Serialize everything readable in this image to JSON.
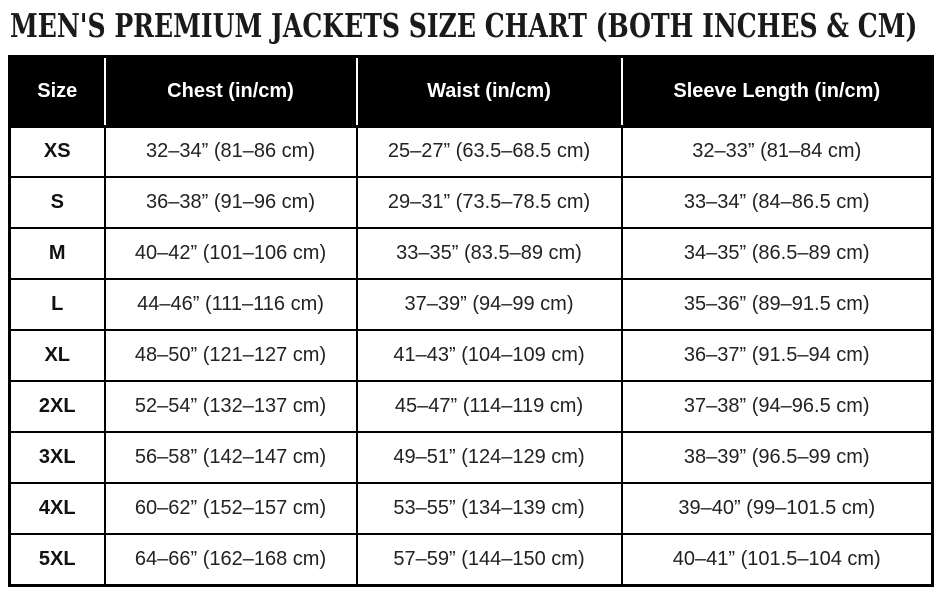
{
  "title": "MEN'S PREMIUM JACKETS SIZE CHART (BOTH INCHES & CM)",
  "colors": {
    "header_background": "#000000",
    "header_text": "#ffffff",
    "cell_text": "#222222",
    "border": "#000000",
    "page_background": "#ffffff"
  },
  "table": {
    "columns": [
      "Size",
      "Chest (in/cm)",
      "Waist (in/cm)",
      "Sleeve Length (in/cm)"
    ],
    "rows": [
      [
        "XS",
        "32–34” (81–86 cm)",
        "25–27” (63.5–68.5 cm)",
        "32–33” (81–84 cm)"
      ],
      [
        "S",
        "36–38” (91–96 cm)",
        "29–31” (73.5–78.5 cm)",
        "33–34” (84–86.5 cm)"
      ],
      [
        "M",
        "40–42” (101–106 cm)",
        "33–35” (83.5–89 cm)",
        "34–35” (86.5–89 cm)"
      ],
      [
        "L",
        "44–46” (111–116 cm)",
        "37–39” (94–99 cm)",
        "35–36” (89–91.5 cm)"
      ],
      [
        "XL",
        "48–50” (121–127 cm)",
        "41–43” (104–109 cm)",
        "36–37” (91.5–94 cm)"
      ],
      [
        "2XL",
        "52–54” (132–137 cm)",
        "45–47” (114–119 cm)",
        "37–38” (94–96.5 cm)"
      ],
      [
        "3XL",
        "56–58” (142–147 cm)",
        "49–51” (124–129 cm)",
        "38–39” (96.5–99 cm)"
      ],
      [
        "4XL",
        "60–62” (152–157 cm)",
        "53–55” (134–139 cm)",
        "39–40” (99–101.5 cm)"
      ],
      [
        "5XL",
        "64–66” (162–168 cm)",
        "57–59” (144–150 cm)",
        "40–41” (101.5–104 cm)"
      ]
    ]
  }
}
